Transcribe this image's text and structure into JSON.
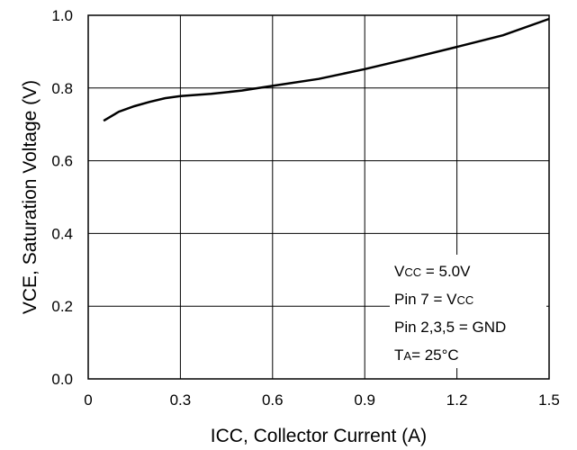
{
  "chart_data": {
    "type": "line",
    "title": "",
    "xlabel": "ICC, Collector Current (A)",
    "ylabel": "VCE, Saturation Voltage (V)",
    "xlim": [
      0,
      1.5
    ],
    "ylim": [
      0.0,
      1.0
    ],
    "grid": true,
    "x_ticks": [
      "0",
      "0.3",
      "0.6",
      "0.9",
      "1.2",
      "1.5"
    ],
    "y_ticks": [
      "0.0",
      "0.2",
      "0.4",
      "0.6",
      "0.8",
      "1.0"
    ],
    "series": [
      {
        "x": [
          0.05,
          0.1,
          0.15,
          0.2,
          0.25,
          0.3,
          0.4,
          0.5,
          0.6,
          0.75,
          0.9,
          1.05,
          1.2,
          1.35,
          1.5
        ],
        "y": [
          0.71,
          0.735,
          0.75,
          0.762,
          0.772,
          0.778,
          0.784,
          0.793,
          0.806,
          0.825,
          0.852,
          0.882,
          0.913,
          0.945,
          0.99
        ],
        "color": "#000000"
      }
    ],
    "annotations": [
      {
        "main": "V",
        "sub": "CC",
        "rest": " = 5.0V"
      },
      {
        "main": "Pin 7 = V",
        "sub": "CC",
        "rest": ""
      },
      {
        "main": "Pin 2,3,5 = GND",
        "sub": "",
        "rest": ""
      },
      {
        "main": "T",
        "sub": "A",
        "rest": "= 25°C"
      }
    ]
  }
}
